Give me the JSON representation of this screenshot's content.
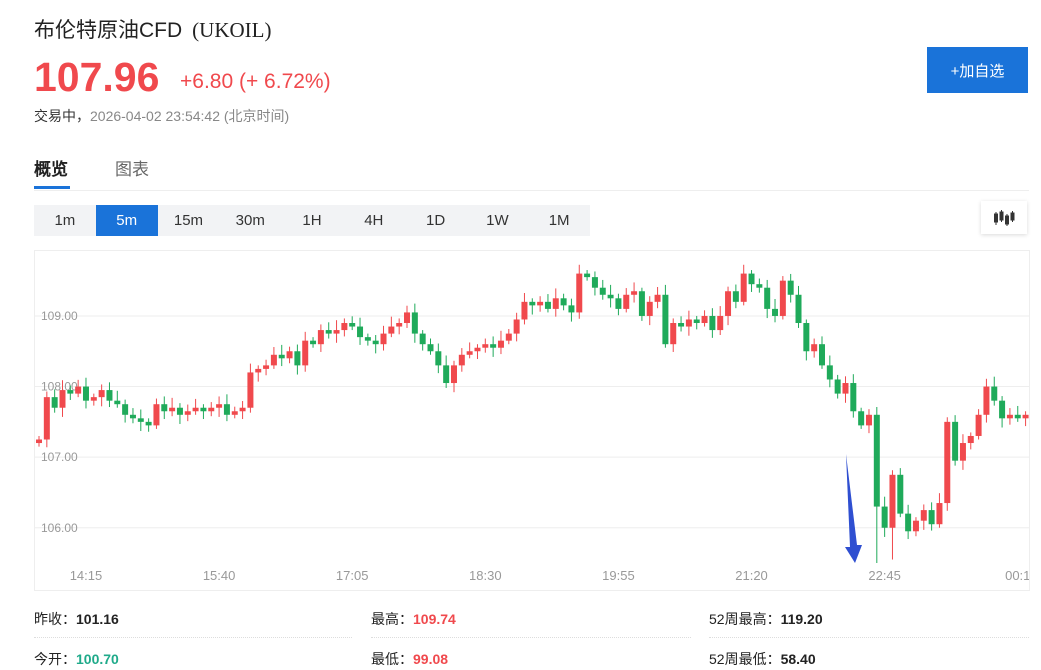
{
  "header": {
    "name": "布伦特原油CFD",
    "code": "(UKOIL)",
    "price": "107.96",
    "change": "+6.80 (+ 6.72%)",
    "status": "交易中，",
    "timestamp": "2026-04-02 23:54:42 (北京时间)",
    "add_watchlist": "+加自选"
  },
  "tabs": [
    {
      "label": "概览",
      "active": true
    },
    {
      "label": "图表",
      "active": false
    }
  ],
  "intervals": [
    {
      "label": "1m"
    },
    {
      "label": "5m",
      "active": true
    },
    {
      "label": "15m"
    },
    {
      "label": "30m"
    },
    {
      "label": "1H"
    },
    {
      "label": "4H"
    },
    {
      "label": "1D"
    },
    {
      "label": "1W"
    },
    {
      "label": "1M"
    }
  ],
  "colors": {
    "accent": "#1a73d9",
    "up": "#f0494d",
    "down": "#1faa5a",
    "annotation_arrow": "#2f4fd1"
  },
  "chart_type_icon": "candlestick-icon",
  "chart_data": {
    "type": "candlestick",
    "interval": "5m",
    "y_ticks": [
      "109.00",
      "108.00",
      "107.00",
      "106.00"
    ],
    "x_ticks": [
      "14:15",
      "15:40",
      "17:05",
      "18:30",
      "19:55",
      "21:20",
      "22:45",
      "00:1"
    ],
    "ylim": [
      105.09,
      109.92
    ],
    "grid": true,
    "up_color": "red",
    "down_color": "green",
    "first_open": 107.2,
    "closes": [
      107.25,
      107.85,
      107.7,
      107.95,
      107.9,
      108.0,
      107.8,
      107.85,
      107.95,
      107.8,
      107.75,
      107.6,
      107.55,
      107.5,
      107.45,
      107.75,
      107.65,
      107.7,
      107.6,
      107.65,
      107.7,
      107.65,
      107.7,
      107.75,
      107.6,
      107.65,
      107.7,
      108.2,
      108.25,
      108.3,
      108.45,
      108.4,
      108.5,
      108.3,
      108.65,
      108.6,
      108.8,
      108.75,
      108.8,
      108.9,
      108.85,
      108.7,
      108.65,
      108.6,
      108.75,
      108.85,
      108.9,
      109.05,
      108.75,
      108.6,
      108.5,
      108.3,
      108.05,
      108.3,
      108.45,
      108.5,
      108.55,
      108.6,
      108.55,
      108.65,
      108.75,
      108.95,
      109.2,
      109.15,
      109.2,
      109.1,
      109.25,
      109.15,
      109.05,
      109.6,
      109.55,
      109.4,
      109.3,
      109.25,
      109.1,
      109.3,
      109.35,
      109.0,
      109.2,
      109.3,
      108.6,
      108.9,
      108.85,
      108.95,
      108.9,
      109.0,
      108.8,
      109.0,
      109.35,
      109.2,
      109.6,
      109.45,
      109.4,
      109.1,
      109.0,
      109.5,
      109.3,
      108.9,
      108.5,
      108.6,
      108.3,
      108.1,
      107.9,
      108.05,
      107.65,
      107.45,
      107.6,
      106.3,
      106.0,
      106.75,
      106.2,
      105.95,
      106.1,
      106.25,
      106.05,
      106.35,
      107.5,
      106.95,
      107.2,
      107.3,
      107.6,
      108.0,
      107.8,
      107.55,
      107.6,
      107.55,
      107.6
    ],
    "notable_lows": {
      "107": 105.5,
      "109": 105.55
    },
    "annotation": "down-arrow"
  },
  "stats": [
    {
      "label": "昨收：",
      "value": "101.16",
      "color": "#222"
    },
    {
      "label": "最高：",
      "value": "109.74",
      "color": "#f0494d"
    },
    {
      "label": "52周最高：",
      "value": "119.20",
      "color": "#222"
    },
    {
      "label": "今开：",
      "value": "100.70",
      "color": "#1faa8a"
    },
    {
      "label": "最低：",
      "value": "99.08",
      "color": "#f0494d"
    },
    {
      "label": "52周最低：",
      "value": "58.40",
      "color": "#222"
    }
  ]
}
